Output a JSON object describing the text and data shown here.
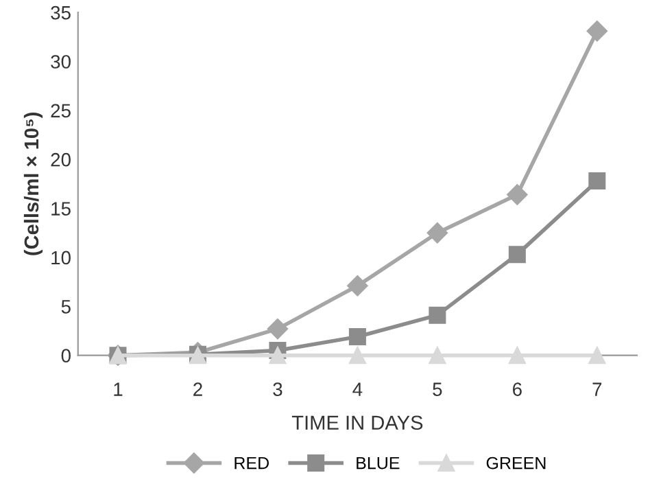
{
  "chart_data": {
    "type": "line",
    "xlabel": "TIME IN DAYS",
    "ylabel": "(Cells/ml × 10⁵)",
    "categories": [
      "1",
      "2",
      "3",
      "4",
      "5",
      "6",
      "7"
    ],
    "series": [
      {
        "name": "RED",
        "color": "#a6a6a6",
        "marker": "diamond",
        "values": [
          0,
          0.3,
          2.7,
          7.1,
          12.5,
          16.4,
          33.1
        ]
      },
      {
        "name": "BLUE",
        "color": "#8c8c8c",
        "marker": "square",
        "values": [
          0,
          0.1,
          0.5,
          1.9,
          4.1,
          10.3,
          17.8
        ]
      },
      {
        "name": "GREEN",
        "color": "#d9d9d9",
        "marker": "triangle",
        "values": [
          0,
          0,
          0,
          0,
          0,
          0,
          0
        ]
      }
    ],
    "ylim": [
      0,
      35
    ],
    "yticks": [
      0,
      5,
      10,
      15,
      20,
      25,
      30,
      35
    ],
    "grid": false,
    "legend": "bottom",
    "line_style": "solid"
  }
}
